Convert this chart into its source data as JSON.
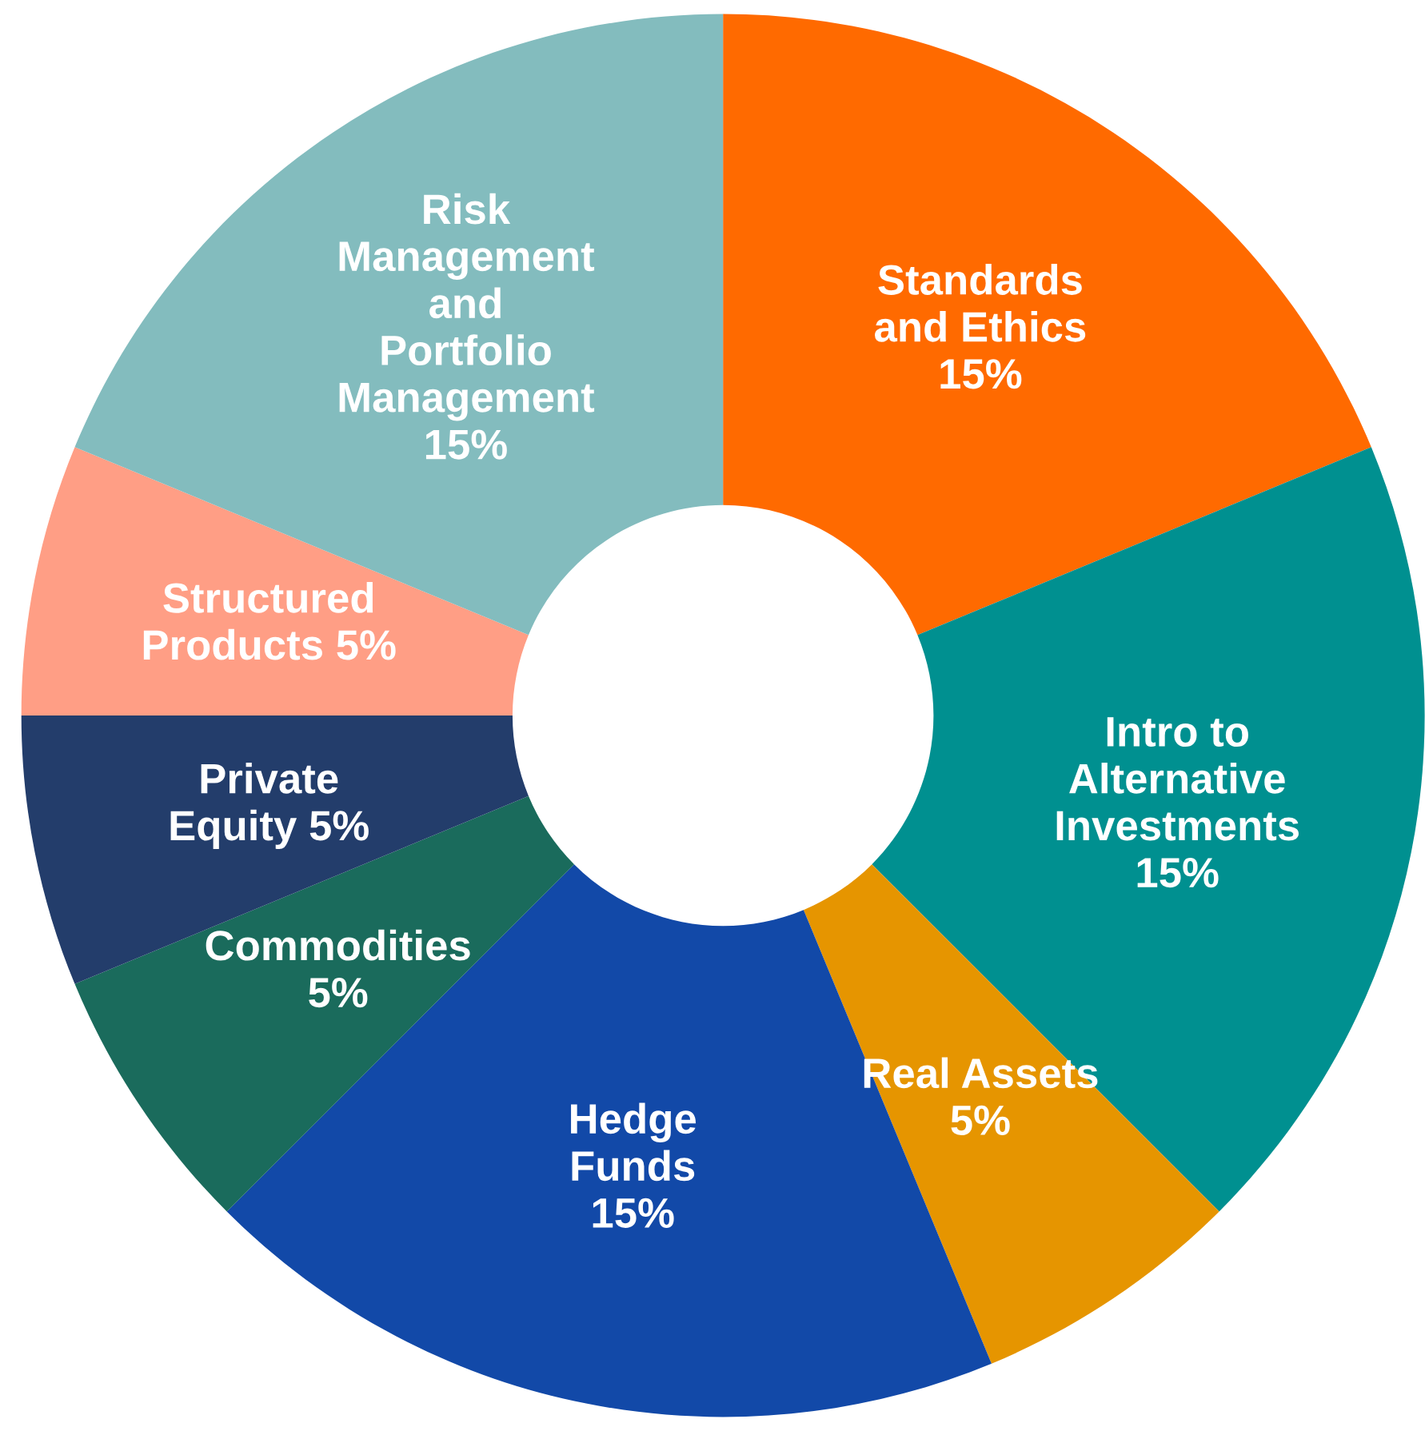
{
  "chart_data": {
    "type": "donut",
    "categories": [
      "Standards\nand Ethics",
      "Intro to\nAlternative\nInvestments",
      "Real Assets",
      "Hedge\nFunds",
      "Commodities",
      "Private\nEquity",
      "Structured\nProducts",
      "Risk\nManagement\nand\nPortfolio\nManagement"
    ],
    "values": [
      15,
      15,
      5,
      15,
      5,
      5,
      5,
      15
    ],
    "value_labels": [
      "15%",
      "15%",
      "5%",
      "15%",
      "5%",
      "5%",
      "5%",
      "15%"
    ],
    "colors": [
      "#ff6a00",
      "#009090",
      "#e69500",
      "#1249a8",
      "#1a6b5c",
      "#233d6b",
      "#ff9e85",
      "#83bcbe"
    ],
    "legend": false
  }
}
